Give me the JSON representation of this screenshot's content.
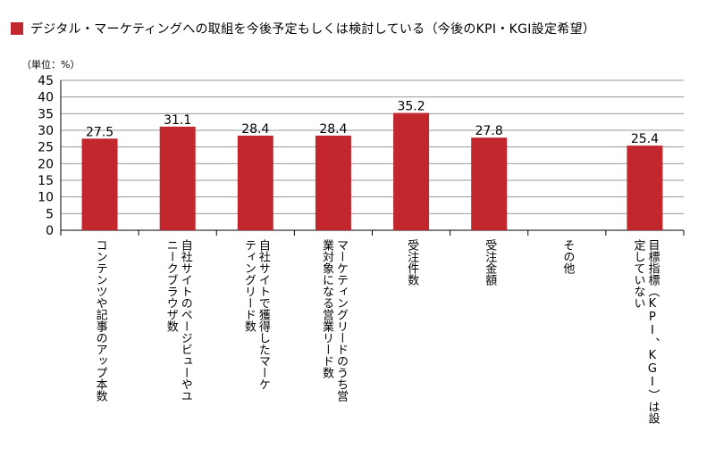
{
  "chart_data": {
    "type": "bar",
    "title": "デジタル・マーケティングへの取組を今後予定もしくは検討している（今後のKPI・KGI設定希望）",
    "unit_label": "（単位：%）",
    "categories": [
      "コンテンツや記事のアップ本数",
      "自社サイトのページビューやユニークブラウザ数",
      "自社サイトで獲得したマーケティングリード数",
      "マーケティングリードのうち営業対象になる営業リード数",
      "受注件数",
      "受注金額",
      "その他",
      "目標指標（KPI、KGI）は設定していない"
    ],
    "category_lines": [
      [
        "コンテンツや記事のアップ本数"
      ],
      [
        "自社サイトのページビューやユ",
        "ニークブラウザ数"
      ],
      [
        "自社サイトで獲得したマーケ",
        "ティングリード数"
      ],
      [
        "マーケティングリードのうち営",
        "業対象になる営業リード数"
      ],
      [
        "受注件数"
      ],
      [
        "受注金額"
      ],
      [
        "その他"
      ],
      [
        "目標指標（KPI、KGI）は設",
        "定していない"
      ]
    ],
    "values": [
      27.5,
      31.1,
      28.4,
      28.4,
      35.2,
      27.8,
      null,
      25.4
    ],
    "value_labels": [
      "27.5",
      "31.1",
      "28.4",
      "28.4",
      "35.2",
      "27.8",
      "",
      "25.4"
    ],
    "ylim": [
      0,
      45
    ],
    "yticks": [
      0,
      5,
      10,
      15,
      20,
      25,
      30,
      35,
      40,
      45
    ],
    "grid": true,
    "bar_color": "#c1272d",
    "grid_color": "#9a9a9a"
  }
}
